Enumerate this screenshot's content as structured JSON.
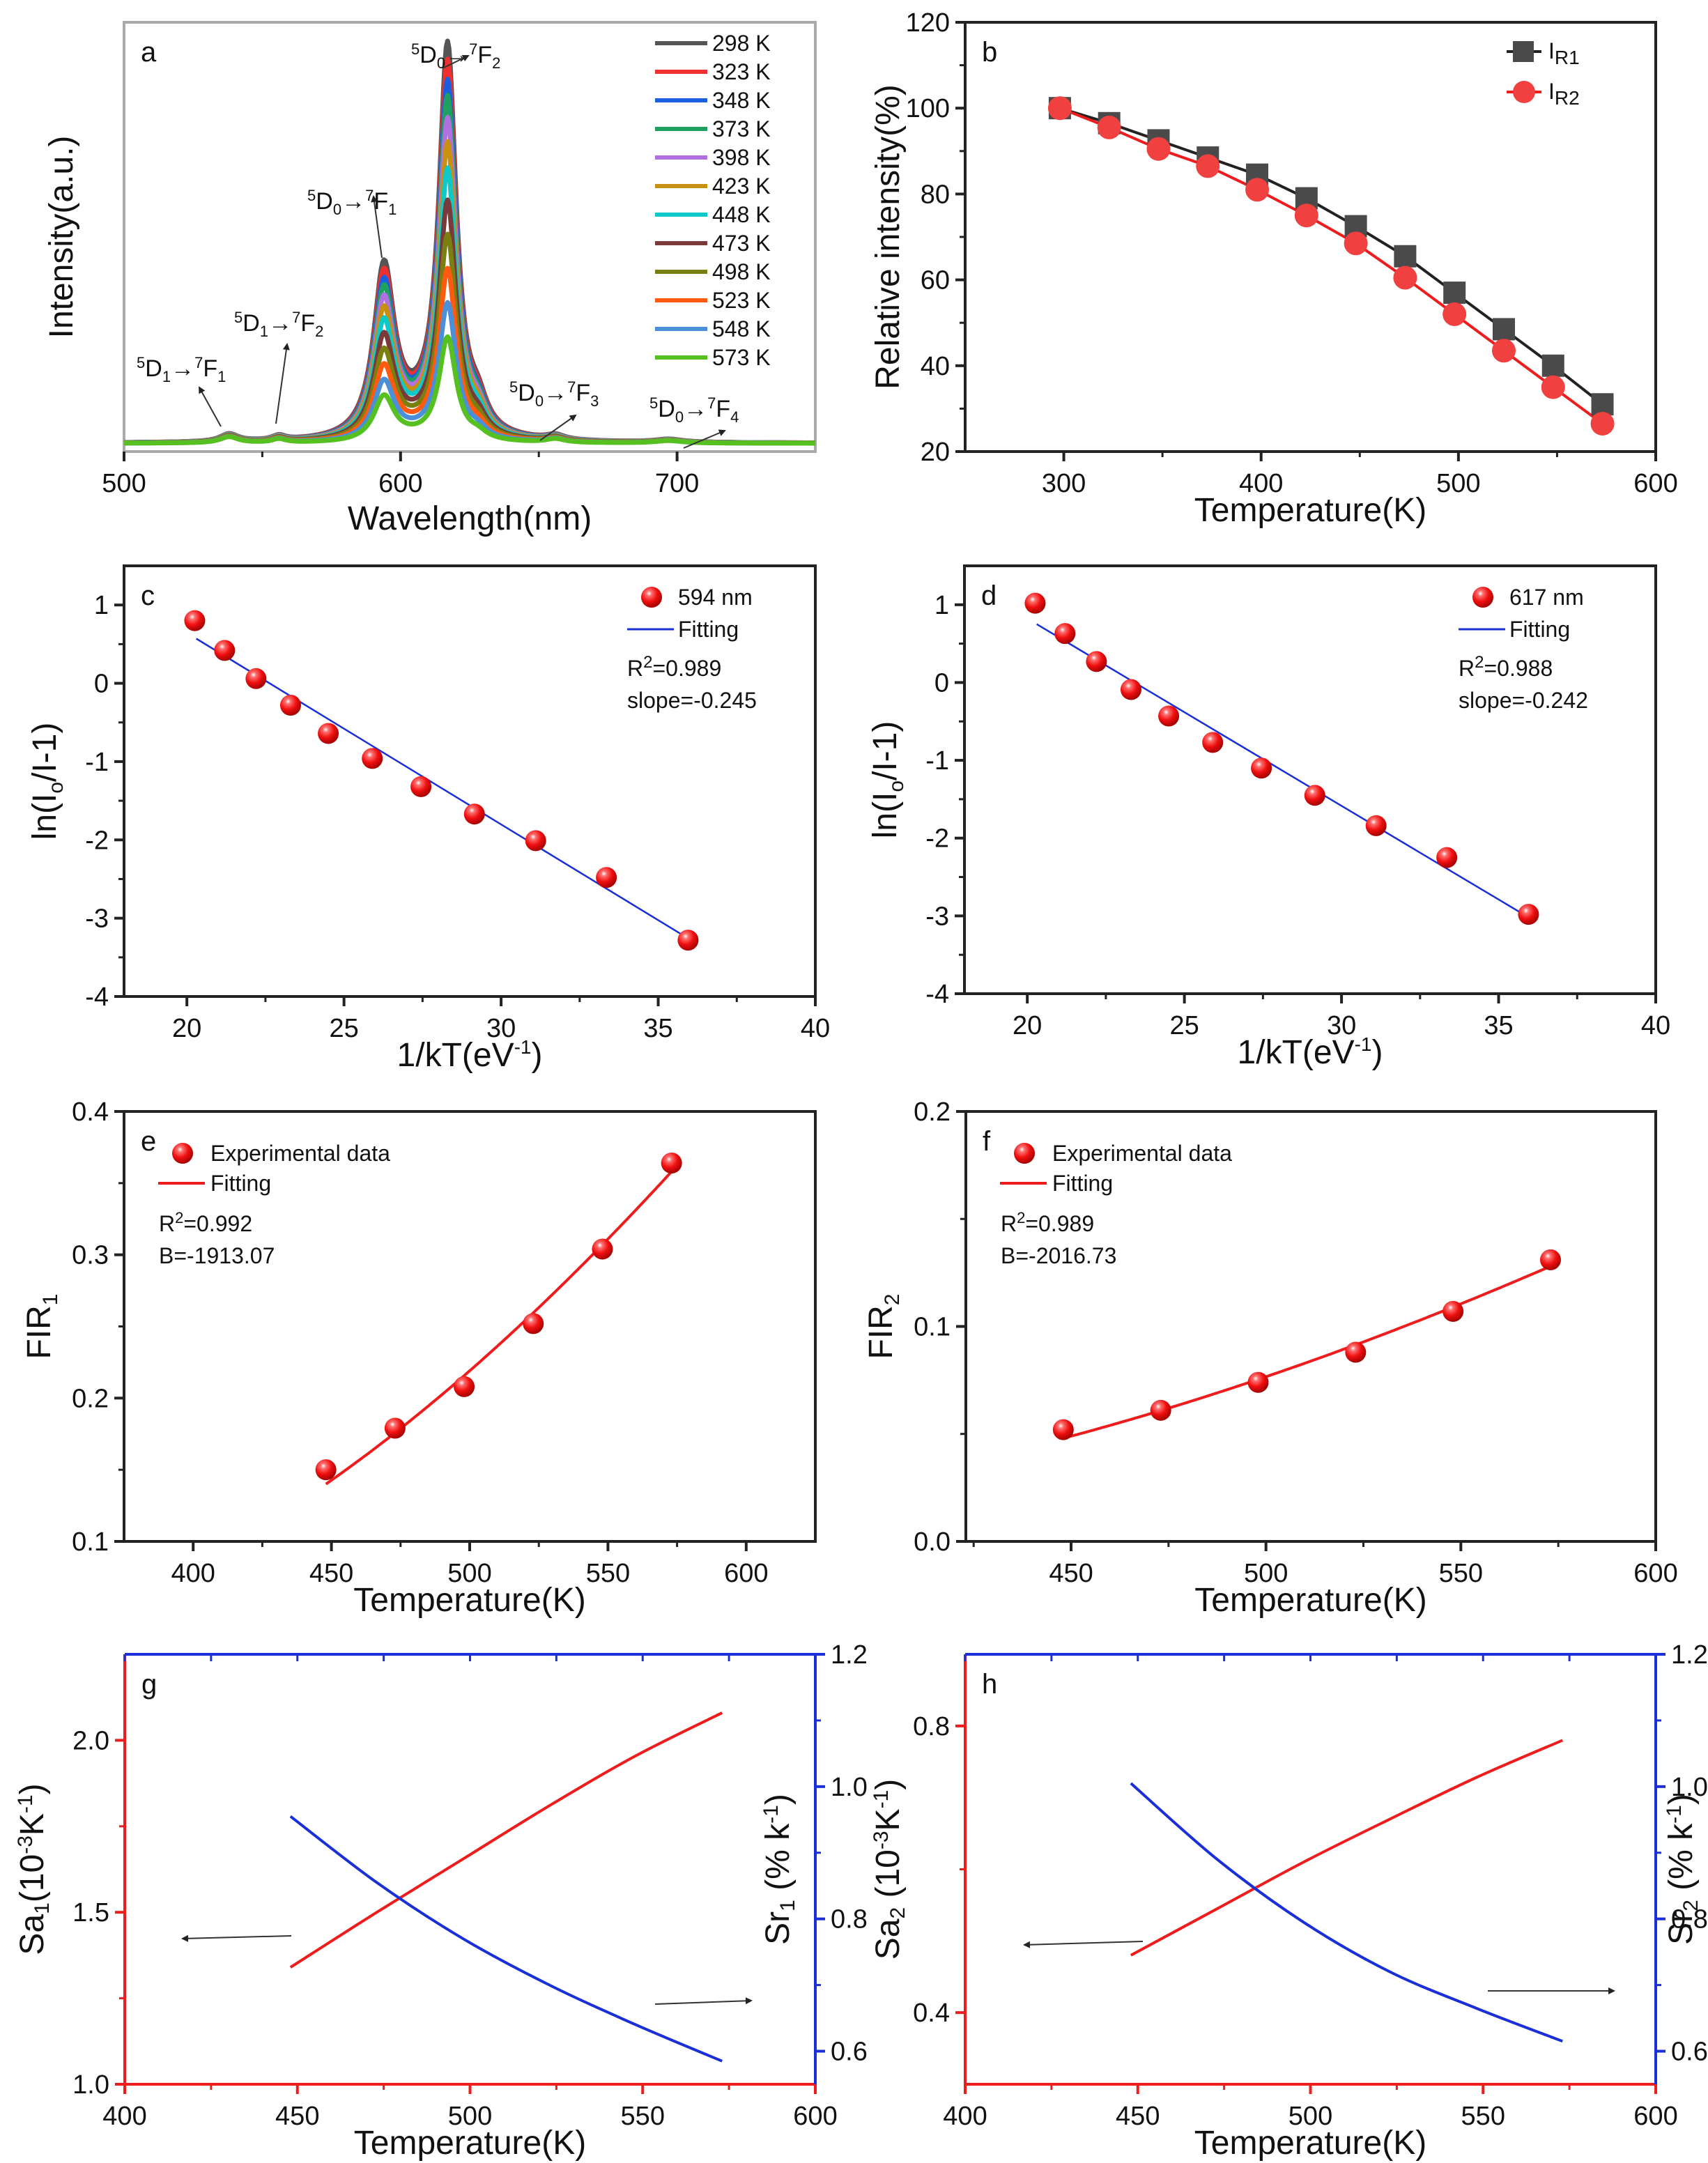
{
  "chart_data": [
    {
      "id": "a",
      "type": "line",
      "panel_label": "a",
      "xlabel": "Wavelength(nm)",
      "ylabel": "Intensity(a.u.)",
      "xlim": [
        500,
        750
      ],
      "ylim": [
        0,
        1.05
      ],
      "xticks": [
        500,
        600,
        700
      ],
      "show_yticks": false,
      "legend_position": "top-right",
      "series": [
        {
          "name": "298 K",
          "color": "#555555",
          "scale": 1.0
        },
        {
          "name": "323 K",
          "color": "#f03030",
          "scale": 0.955
        },
        {
          "name": "348 K",
          "color": "#1a5fe0",
          "scale": 0.905
        },
        {
          "name": "373 K",
          "color": "#20a060",
          "scale": 0.865
        },
        {
          "name": "398 K",
          "color": "#b070e0",
          "scale": 0.81
        },
        {
          "name": "423 K",
          "color": "#c89010",
          "scale": 0.75
        },
        {
          "name": "448 K",
          "color": "#10c8c8",
          "scale": 0.685
        },
        {
          "name": "473 K",
          "color": "#7a3a3a",
          "scale": 0.605
        },
        {
          "name": "498 K",
          "color": "#7a8010",
          "scale": 0.52
        },
        {
          "name": "523 K",
          "color": "#ff5a10",
          "scale": 0.435
        },
        {
          "name": "548 K",
          "color": "#4a90d8",
          "scale": 0.35
        },
        {
          "name": "573 K",
          "color": "#55c020",
          "scale": 0.265
        }
      ],
      "peaks": [
        {
          "center": 594,
          "height": 0.43,
          "width": 4.5
        },
        {
          "center": 617,
          "height": 1.0,
          "width": 3.8
        },
        {
          "center": 628,
          "height": 0.06,
          "width": 4
        },
        {
          "center": 538,
          "height": 0.02,
          "width": 4
        },
        {
          "center": 556,
          "height": 0.012,
          "width": 3
        },
        {
          "center": 656,
          "height": 0.012,
          "width": 4
        },
        {
          "center": 697,
          "height": 0.008,
          "width": 6
        }
      ],
      "annotations": [
        {
          "pre": "5",
          "main1": "D",
          "sub1": "0",
          "arrow": "→",
          "pre2": "7",
          "main2": "F",
          "sub2": "2"
        },
        {
          "pre": "5",
          "main1": "D",
          "sub1": "0",
          "arrow": "→",
          "pre2": "7",
          "main2": "F",
          "sub2": "1"
        },
        {
          "pre": "5",
          "main1": "D",
          "sub1": "1",
          "arrow": "→",
          "pre2": "7",
          "main2": "F",
          "sub2": "2"
        },
        {
          "pre": "5",
          "main1": "D",
          "sub1": "1",
          "arrow": "→",
          "pre2": "7",
          "main2": "F",
          "sub2": "1"
        },
        {
          "pre": "5",
          "main1": "D",
          "sub1": "0",
          "arrow": "→",
          "pre2": "7",
          "main2": "F",
          "sub2": "3"
        },
        {
          "pre": "5",
          "main1": "D",
          "sub1": "0",
          "arrow": "→",
          "pre2": "7",
          "main2": "F",
          "sub2": "4"
        }
      ]
    },
    {
      "id": "b",
      "type": "line",
      "panel_label": "b",
      "xlabel": "Temperature(K)",
      "ylabel": "Relative intensity(%)",
      "xlim": [
        250,
        600
      ],
      "ylim": [
        20,
        120
      ],
      "xticks": [
        300,
        400,
        500,
        600
      ],
      "yticks": [
        20,
        40,
        60,
        80,
        100,
        120
      ],
      "legend_position": "top-right",
      "x": [
        298,
        323,
        348,
        373,
        398,
        423,
        448,
        473,
        498,
        523,
        548,
        573
      ],
      "series": [
        {
          "name": "I",
          "sub": "R1",
          "color": "#222222",
          "marker_color": "#4a4a4a",
          "marker": "square",
          "values": [
            100,
            96.5,
            92.5,
            88.5,
            84.5,
            79,
            72.5,
            65.5,
            57,
            48.5,
            40,
            31
          ]
        },
        {
          "name": "I",
          "sub": "R2",
          "color": "#ee1c1c",
          "marker_color": "#f04040",
          "marker": "circle",
          "values": [
            100,
            95.5,
            90.5,
            86.5,
            81,
            75,
            68.5,
            60.5,
            52,
            43.5,
            35,
            26.5
          ]
        }
      ]
    },
    {
      "id": "c",
      "type": "scatter",
      "panel_label": "c",
      "xlabel": "1/kT(eV",
      "xlabel_sup": "-1",
      "xlabel_end": ")",
      "ylabel": "ln(I",
      "ylabel_sub": "o",
      "ylabel_end": "/I-1)",
      "xlim": [
        18,
        40
      ],
      "ylim": [
        -4,
        1.5
      ],
      "xticks": [
        20,
        25,
        30,
        35,
        40
      ],
      "yticks": [
        -4,
        -3,
        -2,
        -1,
        0,
        1
      ],
      "legend_position": "top-right",
      "points": {
        "name": "594 nm",
        "x": [
          20.25,
          21.2,
          22.2,
          23.3,
          24.5,
          25.9,
          27.45,
          29.15,
          31.1,
          33.35,
          35.95
        ],
        "y": [
          0.8,
          0.42,
          0.06,
          -0.28,
          -0.64,
          -0.96,
          -1.32,
          -1.67,
          -2.01,
          -2.48,
          -3.28
        ]
      },
      "fit": {
        "name": "Fitting",
        "color": "#1a2fd8",
        "x": [
          20.3,
          36.0
        ],
        "y": [
          0.57,
          -3.27
        ]
      },
      "stats": [
        "0.989",
        "slope=-0.245"
      ]
    },
    {
      "id": "d",
      "type": "scatter",
      "panel_label": "d",
      "xlabel": "1/kT(eV",
      "xlabel_sup": "-1",
      "xlabel_end": ")",
      "ylabel": "ln(I",
      "ylabel_sub": "o",
      "ylabel_end": "/I-1)",
      "xlim": [
        18,
        40
      ],
      "ylim": [
        -4,
        1.5
      ],
      "xticks": [
        20,
        25,
        30,
        35,
        40
      ],
      "yticks": [
        -4,
        -3,
        -2,
        -1,
        0,
        1
      ],
      "legend_position": "top-right",
      "points": {
        "name": "617 nm",
        "x": [
          20.25,
          21.2,
          22.2,
          23.3,
          24.5,
          25.9,
          27.45,
          29.15,
          31.1,
          33.35,
          35.95
        ],
        "y": [
          1.02,
          0.63,
          0.27,
          -0.09,
          -0.43,
          -0.77,
          -1.1,
          -1.45,
          -1.84,
          -2.25,
          -2.98
        ]
      },
      "fit": {
        "name": "Fitting",
        "color": "#1a2fd8",
        "x": [
          20.3,
          36.0
        ],
        "y": [
          0.75,
          -3.03
        ]
      },
      "stats": [
        "0.988",
        "slope=-0.242"
      ]
    },
    {
      "id": "e",
      "type": "scatter",
      "panel_label": "e",
      "xlabel": "Temperature(K)",
      "ylabel": "FIR",
      "ylabel_sub": "1",
      "xlim": [
        375,
        625
      ],
      "ylim": [
        0.1,
        0.4
      ],
      "xticks": [
        400,
        450,
        500,
        550,
        600
      ],
      "yticks": [
        0.1,
        0.2,
        0.3,
        0.4
      ],
      "ytick_format": 1,
      "legend_position": "top-left",
      "points": {
        "name": "Experimental data",
        "x": [
          448,
          473,
          498,
          523,
          548,
          573
        ],
        "y": [
          0.15,
          0.179,
          0.208,
          0.252,
          0.304,
          0.364
        ]
      },
      "fit": {
        "name": "Fitting",
        "color": "#ee1c1c",
        "model": "exp",
        "B": -1913.07,
        "x_range": [
          448,
          573
        ],
        "y_end": [
          0.14,
          0.358
        ]
      },
      "stats": [
        "0.992",
        "B=-1913.07"
      ]
    },
    {
      "id": "f",
      "type": "scatter",
      "panel_label": "f",
      "xlabel": "Temperature(K)",
      "ylabel": "FIR",
      "ylabel_sub": "2",
      "xlim": [
        423,
        600
      ],
      "ylim": [
        0.0,
        0.2
      ],
      "xticks": [
        450,
        500,
        550,
        600
      ],
      "yticks": [
        0.0,
        0.1,
        0.2
      ],
      "ytick_format": 1,
      "legend_position": "top-left",
      "points": {
        "name": "Experimental data",
        "x": [
          448,
          473,
          498,
          523,
          548,
          573
        ],
        "y": [
          0.052,
          0.061,
          0.074,
          0.088,
          0.107,
          0.131
        ]
      },
      "fit": {
        "name": "Fitting",
        "color": "#ee1c1c",
        "model": "exp",
        "B": -2016.73,
        "x_range": [
          448,
          573
        ],
        "y_end": [
          0.048,
          0.128
        ]
      },
      "stats": [
        "0.989",
        "B=-2016.73"
      ]
    },
    {
      "id": "g",
      "type": "line",
      "panel_label": "g",
      "xlabel": "Temperature(K)",
      "ylabel": "Sa",
      "ylabel_sub": "1",
      "ylabel_end": "(10",
      "ylabel_sup": "-3",
      "ylabel_tail": "K",
      "ylabel_tail_sup": "-1",
      "ylabel_close": ")",
      "ylabel_right": "Sr",
      "ylabel_right_sub": "1",
      "ylabel_right_end": " (% k",
      "ylabel_right_sup": "-1",
      "ylabel_right_close": ")",
      "xlim": [
        400,
        600
      ],
      "ylim_left": [
        1.0,
        2.25
      ],
      "ylim_right": [
        0.55,
        1.2
      ],
      "xticks": [
        400,
        450,
        500,
        550,
        600
      ],
      "yticks_left": [
        1.0,
        1.5,
        2.0
      ],
      "yticks_right": [
        0.6,
        0.8,
        1.0,
        1.2
      ],
      "left_color": "#ee1c1c",
      "right_color": "#1a2fd8",
      "series": [
        {
          "name": "Sa1",
          "axis": "left",
          "color": "#ee1c1c",
          "x": [
            448,
            473,
            498,
            523,
            548,
            573
          ],
          "values": [
            1.34,
            1.5,
            1.655,
            1.81,
            1.955,
            2.08
          ]
        },
        {
          "name": "Sr1",
          "axis": "right",
          "color": "#1a2fd8",
          "x": [
            448,
            473,
            498,
            523,
            548,
            573
          ],
          "values": [
            0.955,
            0.855,
            0.77,
            0.7,
            0.64,
            0.585
          ]
        }
      ]
    },
    {
      "id": "h",
      "type": "line",
      "panel_label": "h",
      "xlabel": "Temperature(K)",
      "ylabel": "Sa",
      "ylabel_sub": "2",
      "ylabel_end": " (10",
      "ylabel_sup": "-3",
      "ylabel_tail": "K",
      "ylabel_tail_sup": "-1",
      "ylabel_close": ")",
      "ylabel_right": "Sr",
      "ylabel_right_sub": "2",
      "ylabel_right_end": " (% k",
      "ylabel_right_sup": "-1",
      "ylabel_right_close": ")",
      "xlim": [
        400,
        600
      ],
      "ylim_left": [
        0.3,
        0.9
      ],
      "ylim_right": [
        0.55,
        1.2
      ],
      "xticks": [
        400,
        450,
        500,
        550,
        600
      ],
      "yticks_left": [
        0.4,
        0.8
      ],
      "yticks_right": [
        0.6,
        0.8,
        1.0,
        1.2
      ],
      "left_color": "#ee1c1c",
      "right_color": "#1a2fd8",
      "series": [
        {
          "name": "Sa2",
          "axis": "left",
          "color": "#ee1c1c",
          "x": [
            448,
            473,
            498,
            523,
            548,
            573
          ],
          "values": [
            0.48,
            0.545,
            0.61,
            0.67,
            0.728,
            0.78
          ]
        },
        {
          "name": "Sr2",
          "axis": "right",
          "color": "#1a2fd8",
          "x": [
            448,
            473,
            498,
            523,
            548,
            573
          ],
          "values": [
            1.005,
            0.89,
            0.795,
            0.72,
            0.665,
            0.615
          ]
        }
      ]
    }
  ]
}
